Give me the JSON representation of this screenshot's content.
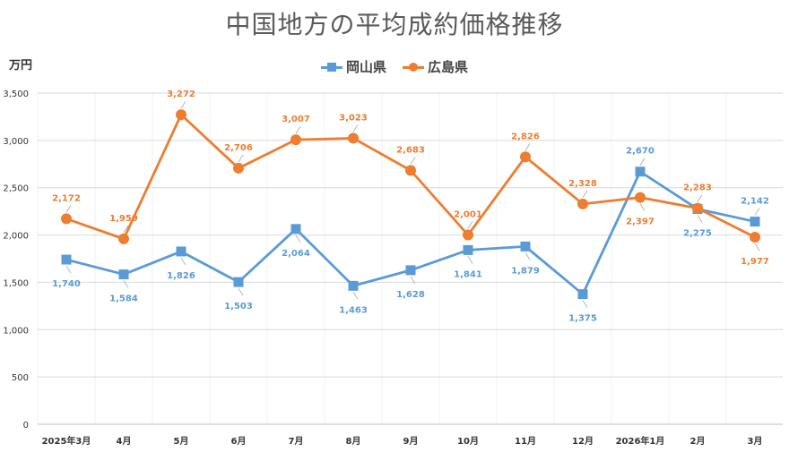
{
  "title": "中国地方の平均成約価格推移",
  "unit_label": "万円",
  "chart_data": {
    "type": "line",
    "title": "中国地方の平均成約価格推移",
    "ylabel": "万円",
    "xlabel": "",
    "ylim": [
      0,
      3500
    ],
    "yticks": [
      0,
      500,
      1000,
      1500,
      2000,
      2500,
      3000,
      3500
    ],
    "ytick_labels": [
      "0",
      "500",
      "1,000",
      "1,500",
      "2,000",
      "2,500",
      "3,000",
      "3,500"
    ],
    "categories": [
      "2025年3月",
      "4月",
      "5月",
      "6月",
      "7月",
      "8月",
      "9月",
      "10月",
      "11月",
      "12月",
      "2026年1月",
      "2月",
      "3月"
    ],
    "legend_position": "top-center",
    "grid": true,
    "series": [
      {
        "name": "岡山県",
        "color": "#5b9bd5",
        "marker": "square",
        "values": [
          1740,
          1584,
          1826,
          1503,
          2064,
          1463,
          1628,
          1841,
          1879,
          1375,
          2670,
          2275,
          2142
        ],
        "labels": [
          "1,740",
          "1,584",
          "1,826",
          "1,503",
          "2,064",
          "1,463",
          "1,628",
          "1,841",
          "1,879",
          "1,375",
          "2,670",
          "2,275",
          "2,142"
        ],
        "label_side": [
          "below",
          "below",
          "below",
          "below",
          "below",
          "below",
          "below",
          "below",
          "below",
          "below",
          "above",
          "below",
          "above"
        ]
      },
      {
        "name": "広島県",
        "color": "#ed7d31",
        "marker": "circle",
        "values": [
          2172,
          1959,
          3272,
          2706,
          3007,
          3023,
          2683,
          2001,
          2826,
          2328,
          2397,
          2283,
          1977
        ],
        "labels": [
          "2,172",
          "1,959",
          "3,272",
          "2,706",
          "3,007",
          "3,023",
          "2,683",
          "2,001",
          "2,826",
          "2,328",
          "2,397",
          "2,283",
          "1,977"
        ],
        "label_side": [
          "above",
          "above",
          "above",
          "above",
          "above",
          "above",
          "above",
          "above",
          "above",
          "above",
          "below",
          "above",
          "below"
        ]
      }
    ]
  }
}
